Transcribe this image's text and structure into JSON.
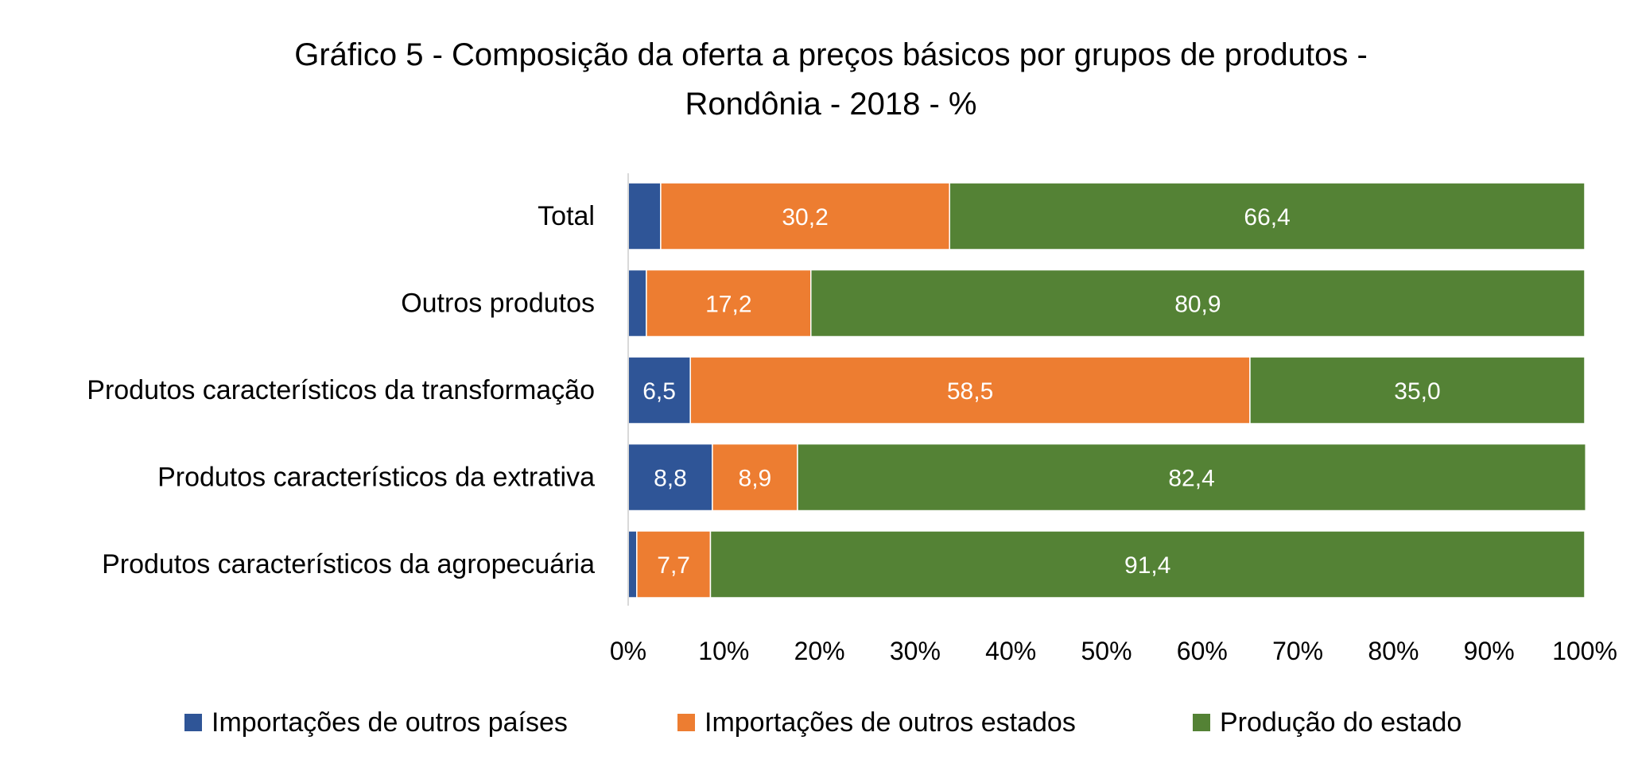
{
  "chart_data": {
    "type": "bar",
    "orientation": "horizontal",
    "stacked": true,
    "percent_stacked": true,
    "title_lines": [
      "Gráfico 5 - Composição da oferta a preços básicos por grupos de produtos -",
      "Rondônia - 2018 - %"
    ],
    "categories": [
      "Total",
      "Outros produtos",
      "Produtos característicos da transformação",
      "Produtos característicos da extrativa",
      "Produtos característicos da agropecuária"
    ],
    "series": [
      {
        "name": "Importações de outros países",
        "color": "#2F5597",
        "values": [
          3.4,
          1.9,
          6.5,
          8.8,
          0.9
        ],
        "labels": [
          "",
          "",
          "6,5",
          "8,8",
          ""
        ]
      },
      {
        "name": "Importações de outros estados",
        "color": "#ED7D31",
        "values": [
          30.2,
          17.2,
          58.5,
          8.9,
          7.7
        ],
        "labels": [
          "30,2",
          "17,2",
          "58,5",
          "8,9",
          "7,7"
        ]
      },
      {
        "name": "Produção do estado",
        "color": "#548235",
        "values": [
          66.4,
          80.9,
          35.0,
          82.4,
          91.4
        ],
        "labels": [
          "66,4",
          "80,9",
          "35,0",
          "82,4",
          "91,4"
        ]
      }
    ],
    "x_ticks": [
      "0%",
      "10%",
      "20%",
      "30%",
      "40%",
      "50%",
      "60%",
      "70%",
      "80%",
      "90%",
      "100%"
    ],
    "xlim": [
      0,
      100
    ],
    "xlabel": "",
    "ylabel": "",
    "grid": false,
    "legend_position": "bottom"
  }
}
